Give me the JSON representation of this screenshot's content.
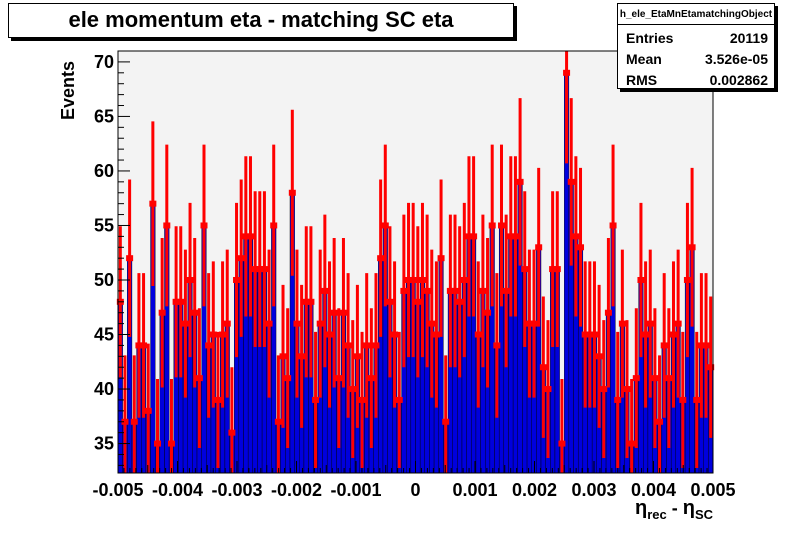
{
  "title": "ele momentum eta - matching SC eta",
  "stats": {
    "name": "h_ele_EtaMnEtamatchingObject",
    "rows": [
      {
        "label": "Entries",
        "value": "20119"
      },
      {
        "label": "Mean",
        "value": "3.526e-05"
      },
      {
        "label": "RMS",
        "value": "0.002862"
      }
    ]
  },
  "chart_data": {
    "type": "bar",
    "ylabel": "Events",
    "xlabel": "η_rec - η_SC",
    "xlabel_parts": {
      "eta1": "η",
      "sub1": "rec",
      "sep": " - ",
      "eta2": "η",
      "sub2": "SC"
    },
    "xlim": [
      -0.005,
      0.005
    ],
    "ylim": [
      32.3,
      71
    ],
    "xticks": [
      {
        "value": -0.005,
        "label": "-0.005"
      },
      {
        "value": -0.004,
        "label": "-0.004"
      },
      {
        "value": -0.003,
        "label": "-0.003"
      },
      {
        "value": -0.002,
        "label": "-0.002"
      },
      {
        "value": -0.001,
        "label": "-0.001"
      },
      {
        "value": 0,
        "label": "0"
      },
      {
        "value": 0.001,
        "label": "0.001"
      },
      {
        "value": 0.002,
        "label": "0.002"
      },
      {
        "value": 0.003,
        "label": "0.003"
      },
      {
        "value": 0.004,
        "label": "0.004"
      },
      {
        "value": 0.005,
        "label": "0.005"
      }
    ],
    "yticks": [
      35,
      40,
      45,
      50,
      55,
      60,
      65,
      70
    ],
    "bin_edges_range": [
      -0.005,
      0.005
    ],
    "values": [
      48,
      37,
      52,
      37,
      44,
      44,
      38,
      57,
      35,
      47,
      55,
      35,
      48,
      48,
      46,
      50,
      47,
      41,
      55,
      44,
      45,
      39,
      45,
      46,
      36,
      50,
      52,
      54,
      54,
      51,
      51,
      51,
      46,
      55,
      37,
      43,
      41,
      58,
      46,
      43,
      48,
      48,
      39,
      46,
      49,
      45,
      47,
      41,
      47,
      44,
      40,
      43,
      39,
      44,
      41,
      44,
      52,
      55,
      48,
      45,
      39,
      49,
      50,
      50,
      48,
      50,
      49,
      46,
      45,
      52,
      37,
      49,
      49,
      48,
      50,
      54,
      54,
      45,
      49,
      47,
      55,
      44,
      55,
      49,
      54,
      54,
      59,
      51,
      46,
      46,
      53,
      42,
      40,
      51,
      51,
      35,
      69,
      59,
      54,
      53,
      45,
      45,
      45,
      43,
      40,
      47,
      55,
      39,
      46,
      40,
      35,
      41,
      50,
      45,
      46,
      41,
      37,
      44,
      41,
      45,
      46,
      39,
      50,
      53,
      39,
      44,
      44,
      42
    ],
    "errors": "sqrt(N)",
    "colors": {
      "fill": "#0000dd",
      "edge": "#000000",
      "error": "#ff0000",
      "frame_bg": "#f3f3f3"
    }
  }
}
